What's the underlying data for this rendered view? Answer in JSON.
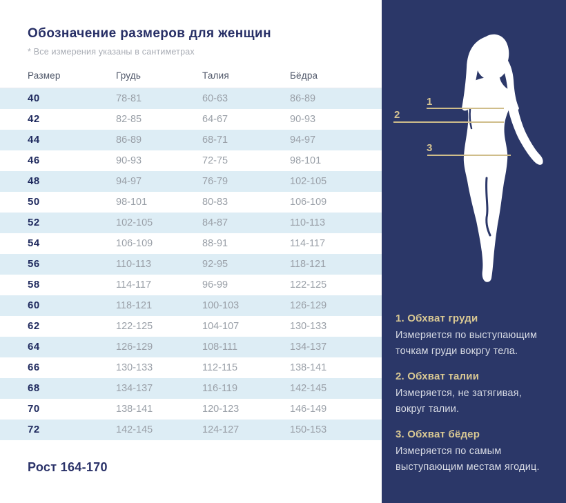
{
  "left": {
    "title": "Обозначение размеров для женщин",
    "note": "* Все измерения указаны в сантиметрах",
    "footer": "Рост 164-170",
    "table": {
      "headers": [
        "Размер",
        "Грудь",
        "Талия",
        "Бёдра"
      ],
      "rows": [
        [
          "40",
          "78-81",
          "60-63",
          "86-89"
        ],
        [
          "42",
          "82-85",
          "64-67",
          "90-93"
        ],
        [
          "44",
          "86-89",
          "68-71",
          "94-97"
        ],
        [
          "46",
          "90-93",
          "72-75",
          "98-101"
        ],
        [
          "48",
          "94-97",
          "76-79",
          "102-105"
        ],
        [
          "50",
          "98-101",
          "80-83",
          "106-109"
        ],
        [
          "52",
          "102-105",
          "84-87",
          "110-113"
        ],
        [
          "54",
          "106-109",
          "88-91",
          "114-117"
        ],
        [
          "56",
          "110-113",
          "92-95",
          "118-121"
        ],
        [
          "58",
          "114-117",
          "96-99",
          "122-125"
        ],
        [
          "60",
          "118-121",
          "100-103",
          "126-129"
        ],
        [
          "62",
          "122-125",
          "104-107",
          "130-133"
        ],
        [
          "64",
          "126-129",
          "108-111",
          "134-137"
        ],
        [
          "66",
          "130-133",
          "112-115",
          "138-141"
        ],
        [
          "68",
          "134-137",
          "116-119",
          "142-145"
        ],
        [
          "70",
          "138-141",
          "120-123",
          "146-149"
        ],
        [
          "72",
          "142-145",
          "124-127",
          "150-153"
        ]
      ]
    }
  },
  "figure": {
    "marker1": "1",
    "marker2": "2",
    "marker3": "3"
  },
  "legend": {
    "sections": [
      {
        "heading": "1. Обхват груди",
        "body": "Измеряется по  выступающим\nточкам груди вокргу тела."
      },
      {
        "heading": "2. Обхват талии",
        "body": "Измеряется, не затягивая,\nвокруг талии."
      },
      {
        "heading": "3. Обхват бёдер",
        "body": "Измеряется по самым\nвыступающим местам ягодиц."
      }
    ]
  },
  "colors": {
    "panel_navy": "#2b3768",
    "accent_gold": "#cfbd8a",
    "gold_text": "#d9c893",
    "row_light_blue": "#ddedf5",
    "title_navy": "#272f66",
    "value_gray": "#9aa0a8"
  }
}
